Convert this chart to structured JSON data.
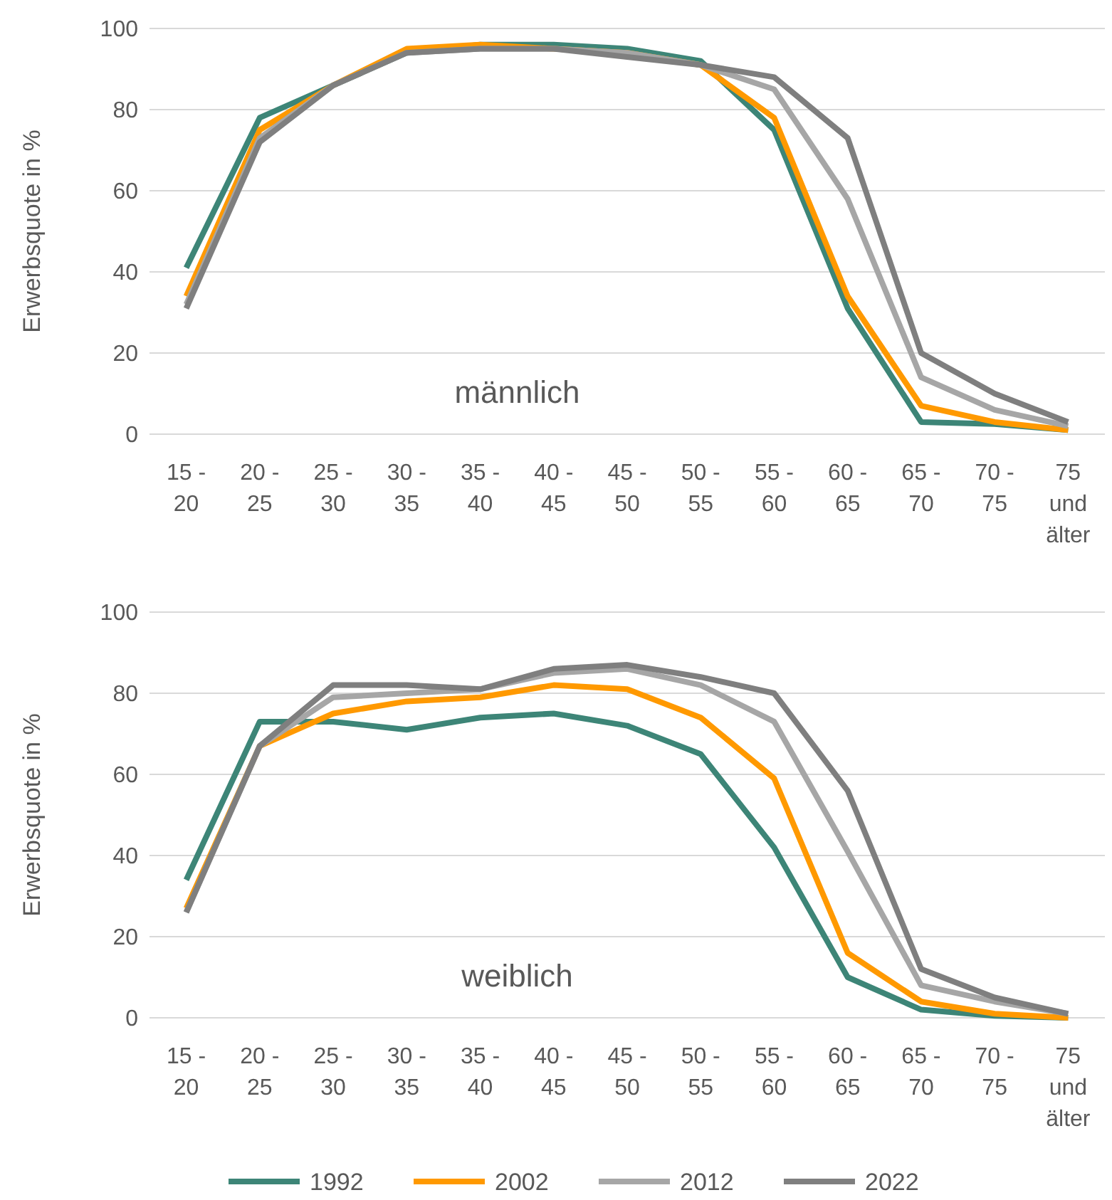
{
  "chart_data": [
    {
      "type": "line",
      "ylabel": "Erwerbsquote in %",
      "annotations": [
        "männlich"
      ],
      "categories": [
        "15 - 20",
        "20 - 25",
        "25 - 30",
        "30 - 35",
        "35 - 40",
        "40 - 45",
        "45 - 50",
        "50 - 55",
        "55 - 60",
        "60 - 65",
        "65 - 70",
        "70 - 75",
        "75 und älter"
      ],
      "ylim": [
        0,
        100
      ],
      "yticks": [
        0,
        20,
        40,
        60,
        80,
        100
      ],
      "grid": "y",
      "legend": false,
      "series": [
        {
          "color": "#3d8577",
          "values": [
            41,
            78,
            86,
            94,
            96,
            96,
            95,
            92,
            75,
            31,
            3,
            2.5,
            1
          ]
        },
        {
          "color": "#ff9900",
          "values": [
            34,
            75,
            86,
            95,
            96,
            95,
            94,
            91,
            78,
            34,
            7,
            3,
            1
          ]
        },
        {
          "color": "#a6a6a6",
          "values": [
            32,
            73,
            86,
            94,
            95,
            95,
            94,
            91,
            85,
            58,
            14,
            6,
            2
          ]
        },
        {
          "color": "#7f7f7f",
          "values": [
            31,
            72,
            86,
            94,
            95,
            95,
            93,
            91,
            88,
            73,
            20,
            10,
            3
          ]
        }
      ]
    },
    {
      "type": "line",
      "ylabel": "Erwerbsquote in %",
      "annotations": [
        "weiblich"
      ],
      "categories": [
        "15 - 20",
        "20 - 25",
        "25 - 30",
        "30 - 35",
        "35 - 40",
        "40 - 45",
        "45 - 50",
        "50 - 55",
        "55 - 60",
        "60 - 65",
        "65 - 70",
        "70 - 75",
        "75 und älter"
      ],
      "ylim": [
        0,
        100
      ],
      "yticks": [
        0,
        20,
        40,
        60,
        80,
        100
      ],
      "grid": "y",
      "legend": "bottom",
      "series": [
        {
          "name": "1992",
          "color": "#3d8577",
          "values": [
            34,
            73,
            73,
            71,
            74,
            75,
            72,
            65,
            42,
            10,
            2,
            0.5,
            0
          ]
        },
        {
          "name": "2002",
          "color": "#ff9900",
          "values": [
            27,
            67,
            75,
            78,
            79,
            82,
            81,
            74,
            59,
            16,
            4,
            1,
            0
          ]
        },
        {
          "name": "2012",
          "color": "#a6a6a6",
          "values": [
            26,
            67,
            79,
            80,
            81,
            85,
            86,
            82,
            73,
            41,
            8,
            4,
            1
          ]
        },
        {
          "name": "2022",
          "color": "#7f7f7f",
          "values": [
            26,
            67,
            82,
            82,
            81,
            86,
            87,
            84,
            80,
            56,
            12,
            5,
            1
          ]
        }
      ]
    }
  ]
}
